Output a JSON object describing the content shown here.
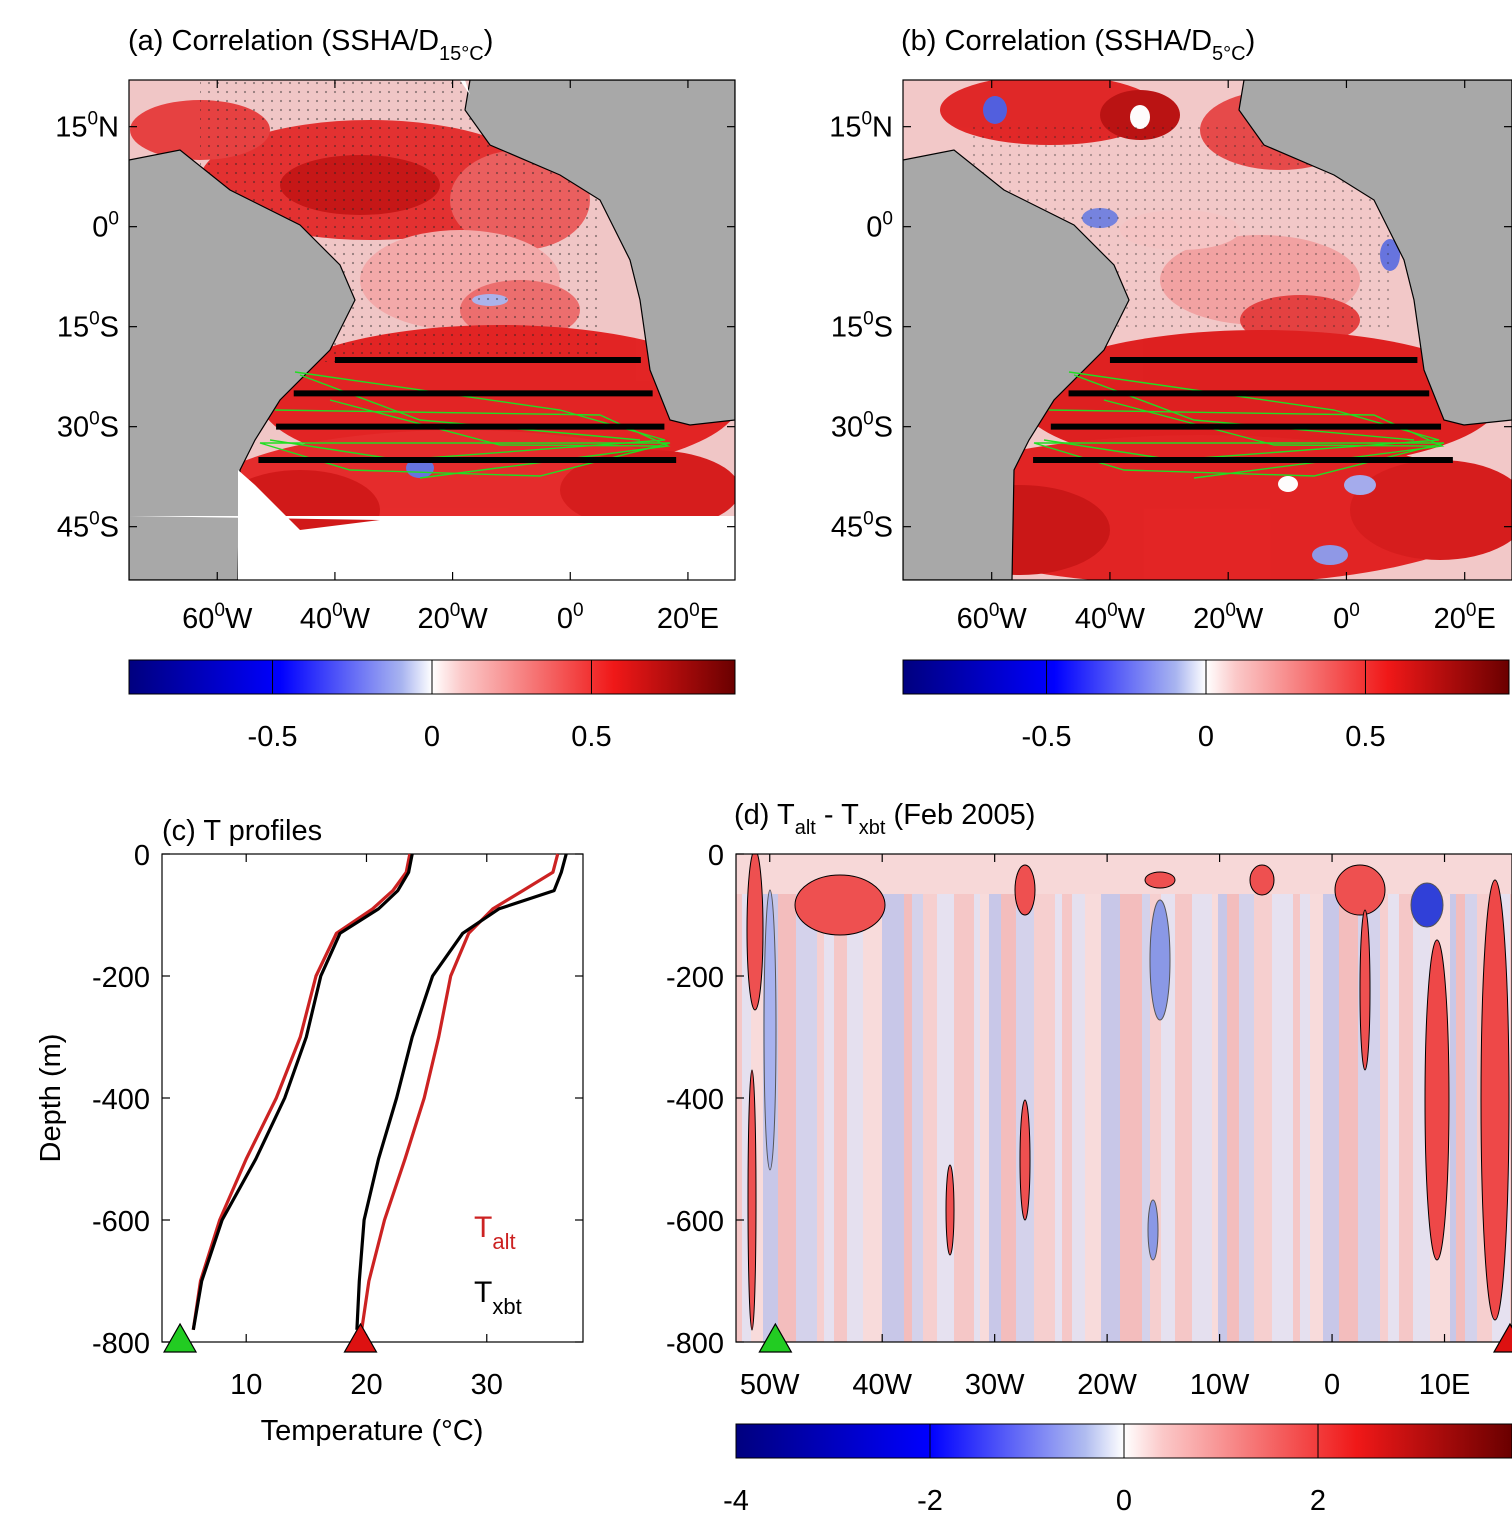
{
  "chart_data": [
    {
      "id": "a",
      "type": "heatmap",
      "title": "(a) Correlation (SSHA/D15°C)",
      "title_main": "(a) Correlation (SSHA/D",
      "title_sub": "15°C",
      "title_close": ")",
      "xlabel": "",
      "ylabel": "",
      "xlim": [
        -75,
        28
      ],
      "ylim": [
        -53,
        22
      ],
      "xticks": [
        {
          "value": -60,
          "label": "60",
          "sup": "0",
          "suffix": "W"
        },
        {
          "value": -40,
          "label": "40",
          "sup": "0",
          "suffix": "W"
        },
        {
          "value": -20,
          "label": "20",
          "sup": "0",
          "suffix": "W"
        },
        {
          "value": 0,
          "label": "0",
          "sup": "0",
          "suffix": ""
        },
        {
          "value": 20,
          "label": "20",
          "sup": "0",
          "suffix": "E"
        }
      ],
      "yticks": [
        {
          "value": 15,
          "label": "15",
          "sup": "0",
          "suffix": "N"
        },
        {
          "value": 0,
          "label": "0",
          "sup": "0",
          "suffix": ""
        },
        {
          "value": -15,
          "label": "15",
          "sup": "0",
          "suffix": "S"
        },
        {
          "value": -30,
          "label": "30",
          "sup": "0",
          "suffix": "S"
        },
        {
          "value": -45,
          "label": "45",
          "sup": "0",
          "suffix": "S"
        }
      ],
      "transect_lines": [
        {
          "lat": -20,
          "lon": [
            -40,
            12
          ]
        },
        {
          "lat": -25,
          "lon": [
            -47,
            14
          ]
        },
        {
          "lat": -30,
          "lon": [
            -50,
            16
          ]
        },
        {
          "lat": -35,
          "lon": [
            -53,
            18
          ]
        }
      ],
      "colorbar": {
        "range": [
          -0.95,
          0.95
        ],
        "ticks": [
          -0.5,
          0,
          0.5
        ],
        "tick_labels": [
          "-0.5",
          "0",
          "0.5"
        ]
      },
      "colors": {
        "land": "#a8a8a8",
        "positive": "#e8141a",
        "negative": "#2a3fd8",
        "tracks": "#22dd22"
      }
    },
    {
      "id": "b",
      "type": "heatmap",
      "title": "(b) Correlation (SSHA/D5°C)",
      "title_main": "(b) Correlation (SSHA/D",
      "title_sub": "5°C",
      "title_close": ")",
      "xlabel": "",
      "ylabel": "",
      "xlim": [
        -75,
        28
      ],
      "ylim": [
        -53,
        22
      ],
      "xticks": [
        {
          "value": -60,
          "label": "60",
          "sup": "0",
          "suffix": "W"
        },
        {
          "value": -40,
          "label": "40",
          "sup": "0",
          "suffix": "W"
        },
        {
          "value": -20,
          "label": "20",
          "sup": "0",
          "suffix": "W"
        },
        {
          "value": 0,
          "label": "0",
          "sup": "0",
          "suffix": ""
        },
        {
          "value": 20,
          "label": "20",
          "sup": "0",
          "suffix": "E"
        }
      ],
      "yticks": [
        {
          "value": 15,
          "label": "15",
          "sup": "0",
          "suffix": "N"
        },
        {
          "value": 0,
          "label": "0",
          "sup": "0",
          "suffix": ""
        },
        {
          "value": -15,
          "label": "15",
          "sup": "0",
          "suffix": "S"
        },
        {
          "value": -30,
          "label": "30",
          "sup": "0",
          "suffix": "S"
        },
        {
          "value": -45,
          "label": "45",
          "sup": "0",
          "suffix": "S"
        }
      ],
      "transect_lines": [
        {
          "lat": -20,
          "lon": [
            -40,
            12
          ]
        },
        {
          "lat": -25,
          "lon": [
            -47,
            14
          ]
        },
        {
          "lat": -30,
          "lon": [
            -50,
            16
          ]
        },
        {
          "lat": -35,
          "lon": [
            -53,
            18
          ]
        }
      ],
      "colorbar": {
        "range": [
          -0.95,
          0.95
        ],
        "ticks": [
          -0.5,
          0,
          0.5
        ],
        "tick_labels": [
          "-0.5",
          "0",
          "0.5"
        ]
      },
      "colors": {
        "land": "#a8a8a8",
        "positive": "#e8141a",
        "negative": "#2a3fd8",
        "tracks": "#22dd22"
      }
    },
    {
      "id": "c",
      "type": "line",
      "title": "(c) T profiles",
      "xlabel": "Temperature (°C)",
      "ylabel": "Depth (m)",
      "xlim": [
        3,
        38
      ],
      "ylim": [
        -800,
        0
      ],
      "xticks": [
        10,
        20,
        30
      ],
      "yticks": [
        0,
        -200,
        -400,
        -600,
        -800
      ],
      "series": [
        {
          "name": "T",
          "name_sub": "alt",
          "color": "#cc2222",
          "profile": "cold",
          "points": [
            [
              23.6,
              0
            ],
            [
              23.3,
              -30
            ],
            [
              22.2,
              -60
            ],
            [
              20.5,
              -90
            ],
            [
              17.5,
              -130
            ],
            [
              15.8,
              -200
            ],
            [
              14.5,
              -300
            ],
            [
              12.5,
              -400
            ],
            [
              10.0,
              -500
            ],
            [
              7.8,
              -600
            ],
            [
              6.2,
              -700
            ],
            [
              5.6,
              -780
            ]
          ]
        },
        {
          "name": "T",
          "name_sub": "xbt",
          "color": "#000000",
          "profile": "cold",
          "points": [
            [
              23.8,
              0
            ],
            [
              23.5,
              -30
            ],
            [
              22.6,
              -60
            ],
            [
              21.0,
              -90
            ],
            [
              17.8,
              -130
            ],
            [
              16.2,
              -200
            ],
            [
              15.0,
              -300
            ],
            [
              13.2,
              -400
            ],
            [
              10.8,
              -500
            ],
            [
              8.0,
              -600
            ],
            [
              6.3,
              -700
            ],
            [
              5.6,
              -780
            ]
          ]
        },
        {
          "name": "T",
          "name_sub": "alt",
          "color": "#cc2222",
          "profile": "warm",
          "points": [
            [
              35.9,
              0
            ],
            [
              35.5,
              -30
            ],
            [
              33.0,
              -60
            ],
            [
              30.5,
              -90
            ],
            [
              28.5,
              -130
            ],
            [
              27.0,
              -200
            ],
            [
              26.0,
              -300
            ],
            [
              24.8,
              -400
            ],
            [
              23.2,
              -500
            ],
            [
              21.5,
              -600
            ],
            [
              20.2,
              -700
            ],
            [
              19.6,
              -780
            ]
          ]
        },
        {
          "name": "T",
          "name_sub": "xbt",
          "color": "#000000",
          "profile": "warm",
          "points": [
            [
              36.6,
              0
            ],
            [
              36.2,
              -30
            ],
            [
              35.6,
              -60
            ],
            [
              31.0,
              -90
            ],
            [
              28.0,
              -130
            ],
            [
              25.5,
              -200
            ],
            [
              23.8,
              -300
            ],
            [
              22.5,
              -400
            ],
            [
              21.0,
              -500
            ],
            [
              19.8,
              -600
            ],
            [
              19.4,
              -700
            ],
            [
              19.2,
              -780
            ]
          ]
        }
      ],
      "markers": [
        {
          "x": 4.5,
          "y": -800,
          "color": "#22cc22"
        },
        {
          "x": 19.5,
          "y": -800,
          "color": "#dd1111"
        }
      ],
      "legend": [
        {
          "label": "T",
          "sub": "alt",
          "color": "#cc2222"
        },
        {
          "label": "T",
          "sub": "xbt",
          "color": "#000000"
        }
      ]
    },
    {
      "id": "d",
      "type": "heatmap",
      "title": "(d) Talt - Txbt (Feb 2005)",
      "title_parts": {
        "a": "(d) T",
        "a_sub": "alt",
        "b": " - T",
        "b_sub": "xbt",
        "c": " (Feb 2005)"
      },
      "xlabel": "",
      "ylabel": "",
      "xlim": [
        -53,
        16
      ],
      "ylim": [
        -800,
        0
      ],
      "xticks": [
        {
          "value": -50,
          "label": "50W"
        },
        {
          "value": -40,
          "label": "40W"
        },
        {
          "value": -30,
          "label": "30W"
        },
        {
          "value": -20,
          "label": "20W"
        },
        {
          "value": -10,
          "label": "10W"
        },
        {
          "value": 0,
          "label": "0"
        },
        {
          "value": 10,
          "label": "10E"
        }
      ],
      "yticks": [
        0,
        -200,
        -400,
        -600,
        -800
      ],
      "markers": [
        {
          "x": -49.5,
          "y": -800,
          "color": "#22cc22"
        },
        {
          "x": 16,
          "y": -800,
          "color": "#dd1111"
        }
      ],
      "colorbar": {
        "range": [
          -4,
          4
        ],
        "ticks": [
          -4,
          -2,
          0,
          2
        ],
        "tick_labels": [
          "-4",
          "-2",
          "0",
          "2"
        ]
      },
      "colors": {
        "positive": "#e8141a",
        "negative": "#2a3fd8"
      }
    }
  ]
}
